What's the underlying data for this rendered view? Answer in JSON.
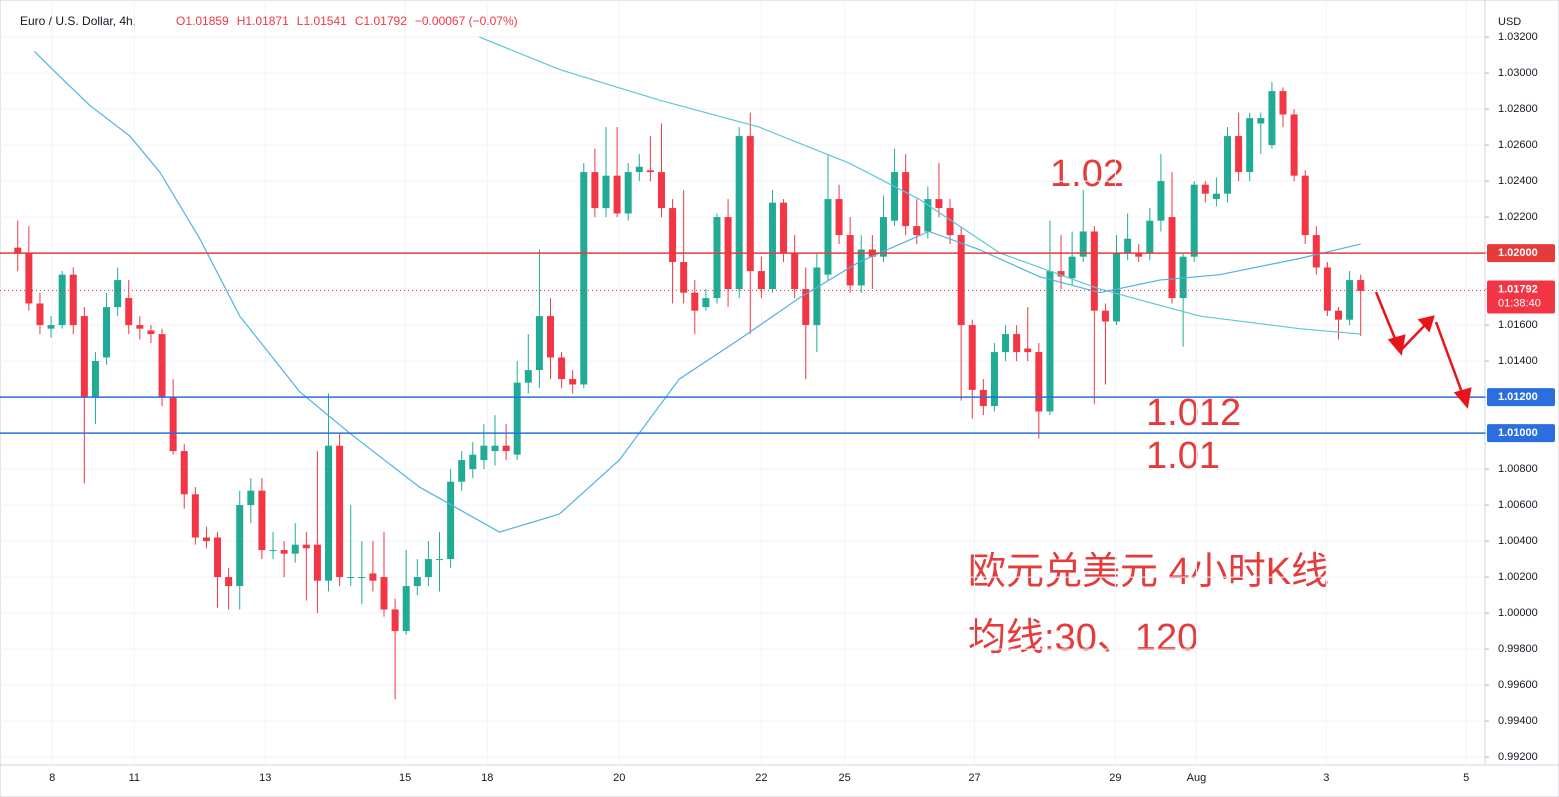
{
  "chart_data": {
    "type": "candlestick",
    "symbol": "Euro / U.S. Dollar, 4h,",
    "ohlc_text": [
      "O1.01859",
      "H1.01871",
      "L1.01541",
      "C1.01792",
      "−0.00067 (−0.07%)"
    ],
    "currency": "USD",
    "up_color": "#22ab94",
    "down_color": "#f23645",
    "candles": {
      "open": [
        1.0203,
        1.02,
        1.0172,
        1.0158,
        1.016,
        1.0188,
        1.0165,
        1.012,
        1.0142,
        1.017,
        1.0175,
        1.016,
        1.0157,
        1.0155,
        1.012,
        1.009,
        1.0066,
        1.0042,
        1.0042,
        1.002,
        1.0015,
        1.006,
        1.0068,
        1.0035,
        1.0035,
        1.0033,
        1.0038,
        1.0038,
        1.0018,
        1.0093,
        1.002,
        1.002,
        1.0022,
        1.002,
        1.0002,
        0.999,
        1.0015,
        1.002,
        1.003,
        1.003,
        1.0073,
        1.008,
        1.0085,
        1.009,
        1.0093,
        1.0088,
        1.0128,
        1.0135,
        1.0165,
        1.0142,
        1.013,
        1.0127,
        1.0245,
        1.0225,
        1.0243,
        1.0222,
        1.0245,
        1.0246,
        1.0245,
        1.0225,
        1.0195,
        1.0178,
        1.017,
        1.0175,
        1.022,
        1.018,
        1.0265,
        1.019,
        1.018,
        1.0228,
        1.02,
        1.018,
        1.016,
        1.0188,
        1.023,
        1.021,
        1.0182,
        1.0202,
        1.0198,
        1.0218,
        1.0245,
        1.0215,
        1.0212,
        1.023,
        1.0225,
        1.021,
        1.016,
        1.0124,
        1.0115,
        1.0145,
        1.0155,
        1.0147,
        1.0145,
        1.0112,
        1.019,
        1.0186,
        1.0198,
        1.0212,
        1.0168,
        1.0162,
        1.02,
        1.02,
        1.02,
        1.0218,
        1.022,
        1.0175,
        1.0198,
        1.0238,
        1.023,
        1.0233,
        1.0265,
        1.0245,
        1.0272,
        1.026,
        1.029,
        1.0277,
        1.0243,
        1.021,
        1.0192,
        1.0168,
        1.0163,
        1.0185
      ],
      "high": [
        1.0218,
        1.0215,
        1.0178,
        1.0165,
        1.019,
        1.0192,
        1.017,
        1.0145,
        1.0178,
        1.0192,
        1.0185,
        1.0165,
        1.016,
        1.0158,
        1.013,
        1.0094,
        1.007,
        1.0048,
        1.0045,
        1.0025,
        1.0068,
        1.0075,
        1.0075,
        1.0045,
        1.004,
        1.005,
        1.0045,
        1.009,
        1.0122,
        1.01,
        1.006,
        1.004,
        1.004,
        1.0045,
        1.0008,
        1.0035,
        1.003,
        1.004,
        1.0045,
        1.008,
        1.009,
        1.0095,
        1.0105,
        1.011,
        1.0105,
        1.014,
        1.0155,
        1.0202,
        1.0175,
        1.0145,
        1.0135,
        1.025,
        1.0258,
        1.027,
        1.027,
        1.025,
        1.0255,
        1.0265,
        1.0272,
        1.023,
        1.0235,
        1.0185,
        1.018,
        1.0222,
        1.023,
        1.027,
        1.0278,
        1.0198,
        1.0235,
        1.023,
        1.021,
        1.0192,
        1.02,
        1.0255,
        1.0238,
        1.022,
        1.021,
        1.021,
        1.0232,
        1.0258,
        1.0255,
        1.023,
        1.0237,
        1.025,
        1.023,
        1.0215,
        1.0163,
        1.013,
        1.015,
        1.016,
        1.016,
        1.017,
        1.015,
        1.0218,
        1.021,
        1.0212,
        1.0235,
        1.0215,
        1.0172,
        1.021,
        1.0222,
        1.0205,
        1.0225,
        1.0255,
        1.0245,
        1.02,
        1.024,
        1.024,
        1.0242,
        1.027,
        1.0278,
        1.0278,
        1.0278,
        1.0295,
        1.0292,
        1.028,
        1.0246,
        1.0215,
        1.0195,
        1.017,
        1.019,
        1.0188
      ],
      "low": [
        1.019,
        1.0168,
        1.0155,
        1.0153,
        1.0158,
        1.0155,
        1.0072,
        1.0105,
        1.0138,
        1.0165,
        1.0155,
        1.0152,
        1.015,
        1.0115,
        1.0088,
        1.0058,
        1.0038,
        1.0036,
        1.0003,
        1.0002,
        1.0002,
        1.005,
        1.003,
        1.003,
        1.002,
        1.0028,
        1.0007,
        1.0,
        1.0012,
        1.0015,
        1.0015,
        1.0005,
        1.0012,
        0.9998,
        0.9952,
        0.9988,
        1.001,
        1.0015,
        1.0012,
        1.0025,
        1.0068,
        1.0075,
        1.008,
        1.0082,
        1.0085,
        1.0085,
        1.0122,
        1.0125,
        1.013,
        1.0125,
        1.0122,
        1.0125,
        1.022,
        1.022,
        1.022,
        1.0218,
        1.024,
        1.024,
        1.022,
        1.0172,
        1.0172,
        1.0155,
        1.0168,
        1.0172,
        1.017,
        1.0175,
        1.0155,
        1.0175,
        1.0178,
        1.0195,
        1.0175,
        1.013,
        1.0145,
        1.0185,
        1.0205,
        1.0178,
        1.0178,
        1.018,
        1.0195,
        1.0215,
        1.021,
        1.0205,
        1.0208,
        1.022,
        1.0205,
        1.0118,
        1.0108,
        1.011,
        1.0112,
        1.014,
        1.014,
        1.014,
        1.0097,
        1.011,
        1.018,
        1.0182,
        1.0195,
        1.0116,
        1.0127,
        1.016,
        1.0196,
        1.0195,
        1.0196,
        1.0212,
        1.0172,
        1.0148,
        1.0195,
        1.0228,
        1.0226,
        1.0228,
        1.024,
        1.024,
        1.0255,
        1.0258,
        1.027,
        1.024,
        1.0205,
        1.0188,
        1.0165,
        1.0152,
        1.016,
        1.0154
      ],
      "close": [
        1.02,
        1.0172,
        1.016,
        1.016,
        1.0188,
        1.016,
        1.012,
        1.014,
        1.017,
        1.0185,
        1.016,
        1.0158,
        1.0155,
        1.012,
        1.009,
        1.0066,
        1.0042,
        1.004,
        1.002,
        1.0015,
        1.006,
        1.0068,
        1.0035,
        1.0035,
        1.0033,
        1.0038,
        1.0036,
        1.0018,
        1.0093,
        1.002,
        1.002,
        1.002,
        1.0018,
        1.0002,
        0.999,
        1.0015,
        1.002,
        1.003,
        1.003,
        1.0073,
        1.0085,
        1.0088,
        1.0093,
        1.0093,
        1.009,
        1.0128,
        1.0135,
        1.0165,
        1.0142,
        1.013,
        1.0127,
        1.0245,
        1.0225,
        1.0243,
        1.0222,
        1.0245,
        1.0248,
        1.0245,
        1.0225,
        1.0195,
        1.0178,
        1.0168,
        1.0175,
        1.022,
        1.018,
        1.0265,
        1.019,
        1.018,
        1.0228,
        1.02,
        1.018,
        1.016,
        1.0192,
        1.023,
        1.021,
        1.0182,
        1.0202,
        1.0198,
        1.022,
        1.0245,
        1.0215,
        1.021,
        1.023,
        1.0225,
        1.021,
        1.016,
        1.0124,
        1.0115,
        1.0145,
        1.0155,
        1.0145,
        1.0145,
        1.0112,
        1.019,
        1.0187,
        1.0198,
        1.0212,
        1.0168,
        1.0162,
        1.02,
        1.0208,
        1.0198,
        1.0218,
        1.024,
        1.0175,
        1.0198,
        1.0238,
        1.0233,
        1.0233,
        1.0265,
        1.0245,
        1.0275,
        1.0275,
        1.029,
        1.0277,
        1.0243,
        1.021,
        1.0192,
        1.0168,
        1.0163,
        1.0185,
        1.0179
      ]
    },
    "moving_averages": [
      {
        "color": "#4fb3e0",
        "x": [
          1.5,
          3.8,
          6.5,
          10.1,
          12.8,
          16.4,
          20,
          25.4,
          29.9,
          36.2,
          43.4,
          48.8,
          54.2,
          59.6,
          65,
          70.4,
          75.8,
          82.1,
          86.6,
          92,
          97.5,
          102.9,
          108.3,
          115.5,
          121
        ],
        "values": [
          1.0312,
          1.0298,
          1.0282,
          1.0265,
          1.0245,
          1.0208,
          1.0165,
          1.0123,
          1.01,
          1.007,
          1.0045,
          1.0055,
          1.0085,
          1.013,
          1.0152,
          1.0175,
          1.0195,
          1.0212,
          1.0202,
          1.0187,
          1.0178,
          1.0185,
          1.0188,
          1.0197,
          1.0205
        ]
      },
      {
        "color": "#5bc8d8",
        "x": [
          41.6,
          48.8,
          57.8,
          66.8,
          74.9,
          81.2,
          88.5,
          97.5,
          106.5,
          115.5,
          121
        ],
        "values": [
          1.032,
          1.0302,
          1.0285,
          1.027,
          1.025,
          1.023,
          1.02,
          1.018,
          1.0165,
          1.0158,
          1.0155
        ]
      }
    ],
    "levels": [
      {
        "value": 1.02,
        "label": "1.02000",
        "color": "#e53b3b"
      },
      {
        "value": 1.012,
        "label": "1.01200",
        "color": "#2a6ee0"
      },
      {
        "value": 1.01,
        "label": "1.01000",
        "color": "#2a6ee0"
      }
    ],
    "last_price": 1.01792,
    "countdown": "01:38:40",
    "xlim": [
      -1.6,
      132.2
    ],
    "xticks": [
      {
        "value": 3.1,
        "label": "8"
      },
      {
        "value": 10.5,
        "label": "11"
      },
      {
        "value": 22.3,
        "label": "13"
      },
      {
        "value": 34.9,
        "label": "15"
      },
      {
        "value": 42.3,
        "label": "18"
      },
      {
        "value": 54.2,
        "label": "20"
      },
      {
        "value": 67.0,
        "label": "22"
      },
      {
        "value": 74.5,
        "label": "25"
      },
      {
        "value": 86.2,
        "label": "27"
      },
      {
        "value": 98.9,
        "label": "29"
      },
      {
        "value": 106.2,
        "label": "Aug"
      },
      {
        "value": 117.9,
        "label": "3"
      },
      {
        "value": 130.5,
        "label": "5"
      }
    ],
    "ylim": [
      0.99156,
      1.03406
    ],
    "yticks": [
      {
        "value": 1.032,
        "label": "1.03200"
      },
      {
        "value": 1.03,
        "label": "1.03000"
      },
      {
        "value": 1.028,
        "label": "1.02800"
      },
      {
        "value": 1.026,
        "label": "1.02600"
      },
      {
        "value": 1.024,
        "label": "1.02400"
      },
      {
        "value": 1.022,
        "label": "1.02200"
      },
      {
        "value": 1.02,
        "label": "1.02000"
      },
      {
        "value": 1.018,
        "label": "1.01800"
      },
      {
        "value": 1.016,
        "label": "1.01600"
      },
      {
        "value": 1.014,
        "label": "1.01400"
      },
      {
        "value": 1.012,
        "label": "1.01200"
      },
      {
        "value": 1.01,
        "label": "1.01000"
      },
      {
        "value": 1.008,
        "label": "1.00800"
      },
      {
        "value": 1.006,
        "label": "1.00600"
      },
      {
        "value": 1.004,
        "label": "1.00400"
      },
      {
        "value": 1.002,
        "label": "1.00200"
      },
      {
        "value": 1.0,
        "label": "1.00000"
      },
      {
        "value": 0.998,
        "label": "0.99800"
      },
      {
        "value": 0.996,
        "label": "0.99600"
      },
      {
        "value": 0.994,
        "label": "0.99400"
      },
      {
        "value": 0.992,
        "label": "0.99200"
      }
    ],
    "annotations": [
      "1.02",
      "1.012",
      "1.01",
      "欧元兑美元 4小时K线",
      "均线:30、120"
    ]
  }
}
